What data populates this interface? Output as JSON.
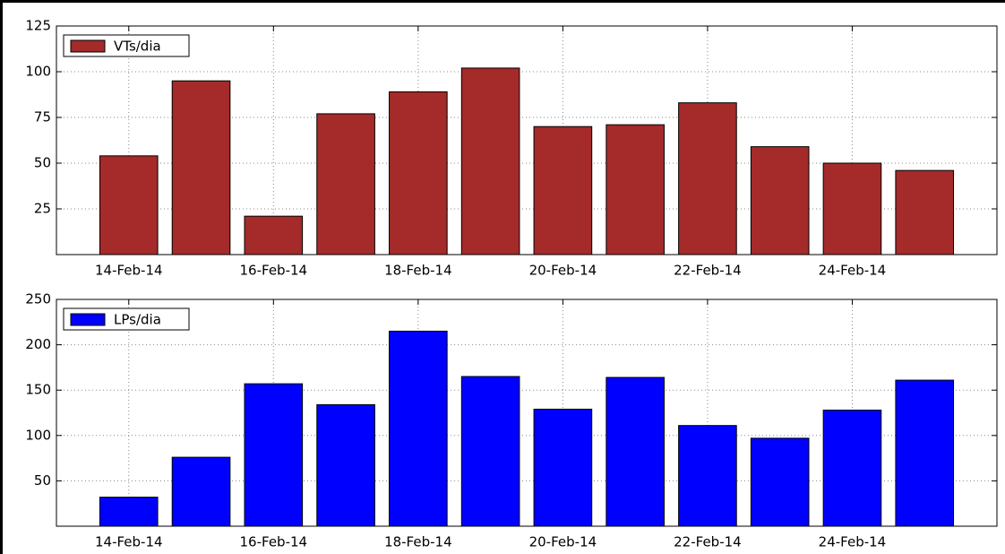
{
  "chart_data": [
    {
      "type": "bar",
      "categories": [
        "14-Feb-14",
        null,
        "16-Feb-14",
        null,
        "18-Feb-14",
        null,
        "20-Feb-14",
        null,
        "22-Feb-14",
        null,
        "24-Feb-14",
        null
      ],
      "series": [
        {
          "name": "VTs/dia",
          "color": "#a52a2a",
          "values": [
            54,
            95,
            21,
            77,
            89,
            102,
            70,
            71,
            83,
            59,
            50,
            46
          ]
        }
      ],
      "ylim": [
        0,
        125
      ],
      "yticks": [
        25,
        50,
        75,
        100,
        125
      ],
      "grid": true,
      "legend": "upper left"
    },
    {
      "type": "bar",
      "categories": [
        "14-Feb-14",
        null,
        "16-Feb-14",
        null,
        "18-Feb-14",
        null,
        "20-Feb-14",
        null,
        "22-Feb-14",
        null,
        "24-Feb-14",
        null
      ],
      "series": [
        {
          "name": "LPs/dia",
          "color": "#0000ff",
          "values": [
            32,
            76,
            157,
            134,
            215,
            165,
            129,
            164,
            111,
            97,
            128,
            161
          ]
        }
      ],
      "ylim": [
        0,
        250
      ],
      "yticks": [
        50,
        100,
        150,
        200,
        250
      ],
      "grid": true,
      "legend": "upper left"
    }
  ]
}
